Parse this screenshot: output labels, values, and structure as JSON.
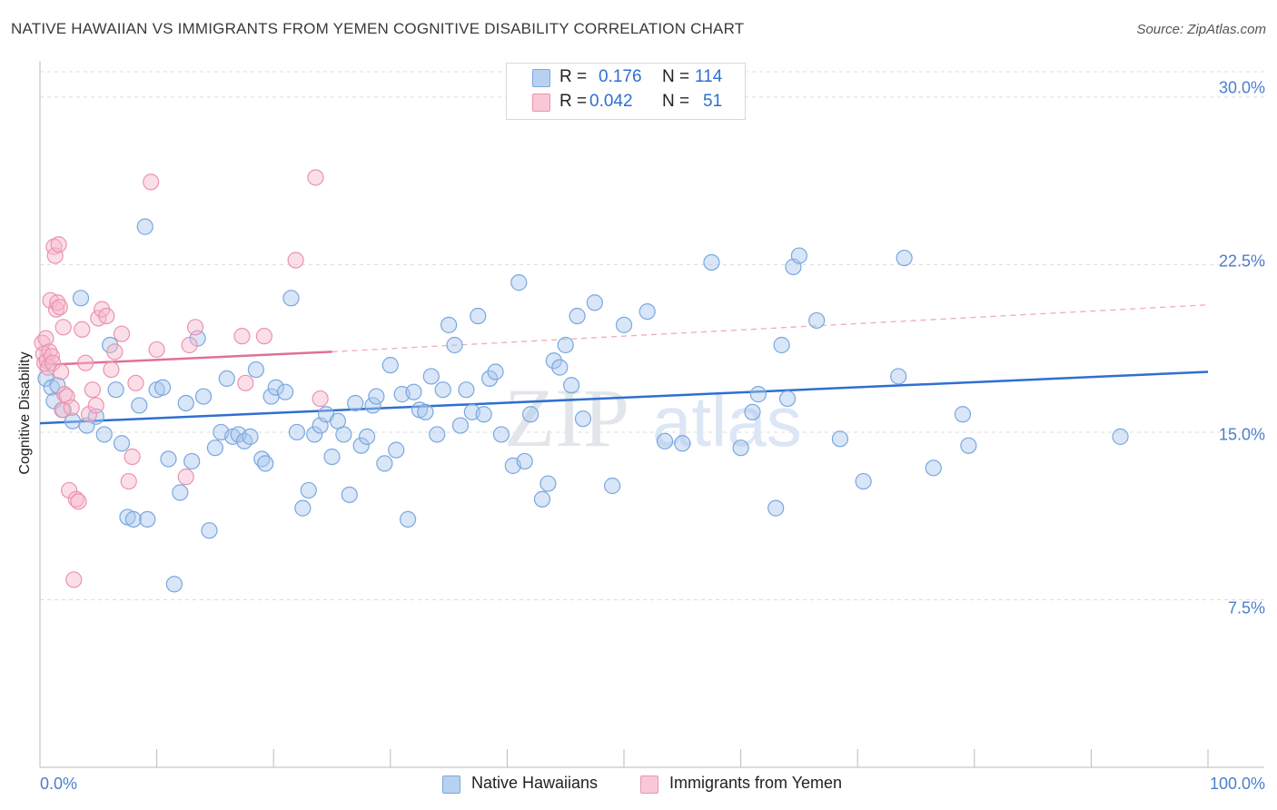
{
  "title": "NATIVE HAWAIIAN VS IMMIGRANTS FROM YEMEN COGNITIVE DISABILITY CORRELATION CHART",
  "source": "Source: ZipAtlas.com",
  "watermark": {
    "zip": "ZIP",
    "atlas": "atlas"
  },
  "legend": {
    "r_label": "R =",
    "n_label": "N =",
    "series1": {
      "r": "0.176",
      "n": "114"
    },
    "series2": {
      "r": "0.042",
      "n": "51"
    }
  },
  "chart_data": {
    "type": "scatter",
    "title": "NATIVE HAWAIIAN VS IMMIGRANTS FROM YEMEN COGNITIVE DISABILITY CORRELATION CHART",
    "xlabel": "",
    "ylabel": "Cognitive Disability",
    "xlim": [
      0,
      100
    ],
    "ylim": [
      0,
      31.5
    ],
    "x_tick_labels": [
      "0.0%",
      "100.0%"
    ],
    "y_ticks": [
      {
        "value": 30.0,
        "label": "30.0%"
      },
      {
        "value": 22.5,
        "label": "22.5%"
      },
      {
        "value": 15.0,
        "label": "15.0%"
      },
      {
        "value": 7.5,
        "label": "7.5%"
      }
    ],
    "series": [
      {
        "name": "Native Hawaiians",
        "color": "#7aa7e0",
        "fill": "#a9c7ee",
        "trend_color": "#2f6fd0",
        "trend": {
          "x0": 0,
          "y0": 15.4,
          "x1": 100,
          "y1": 17.7
        },
        "points": [
          [
            0.5,
            17.4
          ],
          [
            1,
            17.0
          ],
          [
            1.2,
            16.4
          ],
          [
            1.5,
            17.1
          ],
          [
            2,
            16.0
          ],
          [
            2.8,
            15.5
          ],
          [
            3.5,
            21.0
          ],
          [
            4,
            15.3
          ],
          [
            4.8,
            15.7
          ],
          [
            5.5,
            14.9
          ],
          [
            6,
            18.9
          ],
          [
            6.5,
            16.9
          ],
          [
            7,
            14.5
          ],
          [
            7.5,
            11.2
          ],
          [
            8,
            11.1
          ],
          [
            8.5,
            16.2
          ],
          [
            9,
            24.2
          ],
          [
            9.2,
            11.1
          ],
          [
            10,
            16.9
          ],
          [
            10.5,
            17.0
          ],
          [
            11,
            13.8
          ],
          [
            11.5,
            8.2
          ],
          [
            12,
            12.3
          ],
          [
            12.5,
            16.3
          ],
          [
            13,
            13.7
          ],
          [
            13.5,
            19.2
          ],
          [
            14,
            16.6
          ],
          [
            14.5,
            10.6
          ],
          [
            15,
            14.3
          ],
          [
            15.5,
            15.0
          ],
          [
            16,
            17.4
          ],
          [
            16.5,
            14.8
          ],
          [
            17,
            14.9
          ],
          [
            17.5,
            14.6
          ],
          [
            18,
            14.8
          ],
          [
            18.5,
            17.8
          ],
          [
            19,
            13.8
          ],
          [
            19.3,
            13.6
          ],
          [
            19.8,
            16.6
          ],
          [
            20.2,
            17.0
          ],
          [
            21,
            16.8
          ],
          [
            21.5,
            21.0
          ],
          [
            22,
            15.0
          ],
          [
            22.5,
            11.6
          ],
          [
            23,
            12.4
          ],
          [
            23.5,
            14.9
          ],
          [
            24,
            15.3
          ],
          [
            24.5,
            15.8
          ],
          [
            25,
            13.9
          ],
          [
            25.5,
            15.5
          ],
          [
            26,
            14.9
          ],
          [
            26.5,
            12.2
          ],
          [
            27,
            16.3
          ],
          [
            27.5,
            14.4
          ],
          [
            28,
            14.8
          ],
          [
            28.5,
            16.2
          ],
          [
            28.8,
            16.6
          ],
          [
            29.5,
            13.6
          ],
          [
            30,
            18.0
          ],
          [
            30.5,
            14.2
          ],
          [
            31,
            16.7
          ],
          [
            31.5,
            11.1
          ],
          [
            32,
            16.8
          ],
          [
            32.5,
            16.0
          ],
          [
            33,
            15.9
          ],
          [
            33.5,
            17.5
          ],
          [
            34,
            14.9
          ],
          [
            34.5,
            16.9
          ],
          [
            35,
            19.8
          ],
          [
            35.5,
            18.9
          ],
          [
            36,
            15.3
          ],
          [
            36.5,
            16.9
          ],
          [
            37,
            15.9
          ],
          [
            37.5,
            20.2
          ],
          [
            38,
            15.8
          ],
          [
            38.5,
            17.4
          ],
          [
            39,
            17.7
          ],
          [
            39.5,
            14.9
          ],
          [
            40.5,
            13.5
          ],
          [
            41,
            21.7
          ],
          [
            41.5,
            13.7
          ],
          [
            42,
            15.8
          ],
          [
            43,
            12.0
          ],
          [
            43.5,
            12.7
          ],
          [
            44,
            18.2
          ],
          [
            44.5,
            17.9
          ],
          [
            45,
            18.9
          ],
          [
            45.5,
            17.1
          ],
          [
            46,
            20.2
          ],
          [
            46.5,
            15.6
          ],
          [
            47.5,
            20.8
          ],
          [
            49,
            12.6
          ],
          [
            50,
            19.8
          ],
          [
            52,
            20.4
          ],
          [
            53.5,
            14.6
          ],
          [
            55,
            14.5
          ],
          [
            57.5,
            22.6
          ],
          [
            60,
            14.3
          ],
          [
            61,
            15.9
          ],
          [
            61.5,
            16.7
          ],
          [
            63,
            11.6
          ],
          [
            63.5,
            18.9
          ],
          [
            64,
            16.5
          ],
          [
            64.5,
            22.4
          ],
          [
            65,
            22.9
          ],
          [
            66.5,
            20.0
          ],
          [
            68.5,
            14.7
          ],
          [
            70.5,
            12.8
          ],
          [
            73.5,
            17.5
          ],
          [
            74,
            22.8
          ],
          [
            76.5,
            13.4
          ],
          [
            79,
            15.8
          ],
          [
            79.5,
            14.4
          ],
          [
            92.5,
            14.8
          ]
        ]
      },
      {
        "name": "Immigrants from Yemen",
        "color": "#eb93ae",
        "fill": "#f6b9cb",
        "trend_color": "#e07098",
        "trend": {
          "x0": 0,
          "y0": 18.0,
          "x1": 25,
          "y1": 18.6
        },
        "trend_ext": {
          "x0": 25,
          "y0": 18.6,
          "x1": 100,
          "y1": 20.7
        },
        "points": [
          [
            0.2,
            19.0
          ],
          [
            0.3,
            18.5
          ],
          [
            0.4,
            18.1
          ],
          [
            0.5,
            19.2
          ],
          [
            0.6,
            18.2
          ],
          [
            0.7,
            17.9
          ],
          [
            0.8,
            18.6
          ],
          [
            0.9,
            20.9
          ],
          [
            1.0,
            18.4
          ],
          [
            1.1,
            18.1
          ],
          [
            1.2,
            23.3
          ],
          [
            1.3,
            22.9
          ],
          [
            1.4,
            20.5
          ],
          [
            1.5,
            20.8
          ],
          [
            1.6,
            23.4
          ],
          [
            1.7,
            20.6
          ],
          [
            1.8,
            17.7
          ],
          [
            1.9,
            16.0
          ],
          [
            2.0,
            19.7
          ],
          [
            2.1,
            16.7
          ],
          [
            2.3,
            16.6
          ],
          [
            2.5,
            12.4
          ],
          [
            2.7,
            16.1
          ],
          [
            2.9,
            8.4
          ],
          [
            3.1,
            12.0
          ],
          [
            3.3,
            11.9
          ],
          [
            3.6,
            19.6
          ],
          [
            3.9,
            18.1
          ],
          [
            4.2,
            15.8
          ],
          [
            4.5,
            16.9
          ],
          [
            4.8,
            16.2
          ],
          [
            5.0,
            20.1
          ],
          [
            5.3,
            20.5
          ],
          [
            5.7,
            20.2
          ],
          [
            6.1,
            17.8
          ],
          [
            6.4,
            18.6
          ],
          [
            7.0,
            19.4
          ],
          [
            7.6,
            12.8
          ],
          [
            7.9,
            13.9
          ],
          [
            8.2,
            17.2
          ],
          [
            9.5,
            26.2
          ],
          [
            10.0,
            18.7
          ],
          [
            12.5,
            13.0
          ],
          [
            12.8,
            18.9
          ],
          [
            13.3,
            19.7
          ],
          [
            17.3,
            19.3
          ],
          [
            17.6,
            17.2
          ],
          [
            19.2,
            19.3
          ],
          [
            21.9,
            22.7
          ],
          [
            23.6,
            26.4
          ],
          [
            24.0,
            16.5
          ]
        ]
      }
    ]
  }
}
